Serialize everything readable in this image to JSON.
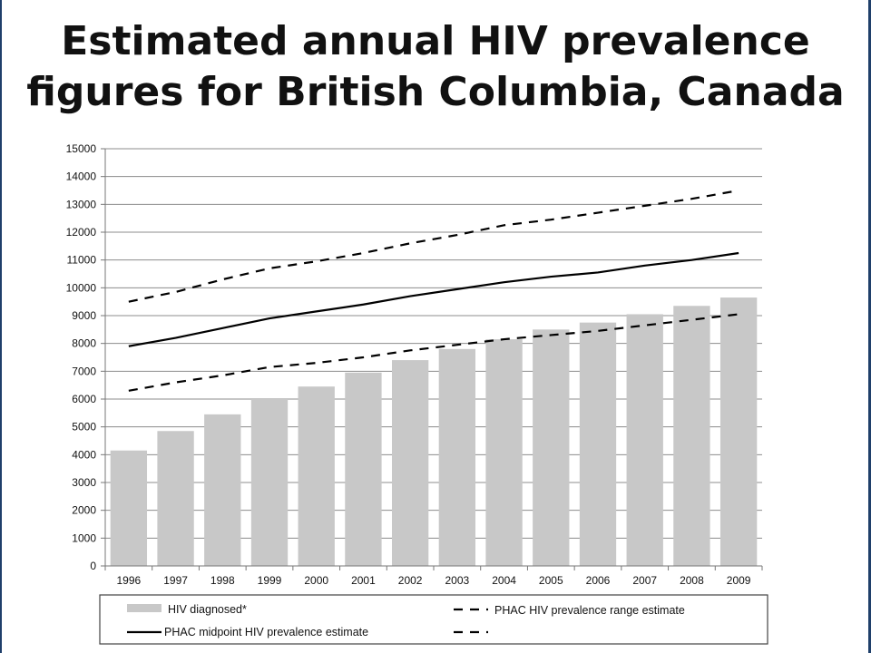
{
  "title_line1": "Estimated annual HIV prevalence",
  "title_line2": "figures for British Columbia, Canada",
  "chart_data": {
    "type": "bar",
    "categories": [
      "1996",
      "1997",
      "1998",
      "1999",
      "2000",
      "2001",
      "2002",
      "2003",
      "2004",
      "2005",
      "2006",
      "2007",
      "2008",
      "2009"
    ],
    "ylim": [
      0,
      15000
    ],
    "yticks": [
      0,
      1000,
      2000,
      3000,
      4000,
      5000,
      6000,
      7000,
      8000,
      9000,
      10000,
      11000,
      12000,
      13000,
      14000,
      15000
    ],
    "grid": true,
    "legend_placement": "bottom",
    "series": [
      {
        "name": "HIV diagnosed*",
        "kind": "bar",
        "color": "#c8c8c8",
        "values": [
          4150,
          4850,
          5450,
          6000,
          6450,
          6950,
          7400,
          7800,
          8150,
          8500,
          8750,
          9050,
          9350,
          9650
        ]
      },
      {
        "name": "PHAC midpoint HIV prevalence estimate",
        "kind": "line",
        "style": "solid",
        "color": "#000000",
        "values": [
          7900,
          8200,
          8550,
          8900,
          9150,
          9400,
          9700,
          9950,
          10200,
          10400,
          10550,
          10800,
          11000,
          11250
        ]
      },
      {
        "name": "PHAC HIV prevalence range estimate",
        "kind": "line",
        "style": "dashed",
        "color": "#000000",
        "values": [
          9500,
          9850,
          10300,
          10700,
          10950,
          11250,
          11600,
          11900,
          12250,
          12450,
          12700,
          12950,
          13200,
          13500
        ]
      },
      {
        "name": "",
        "kind": "line",
        "style": "dashed",
        "color": "#000000",
        "values": [
          6300,
          6600,
          6850,
          7150,
          7300,
          7500,
          7750,
          7950,
          8150,
          8300,
          8450,
          8650,
          8850,
          9050
        ]
      }
    ]
  }
}
